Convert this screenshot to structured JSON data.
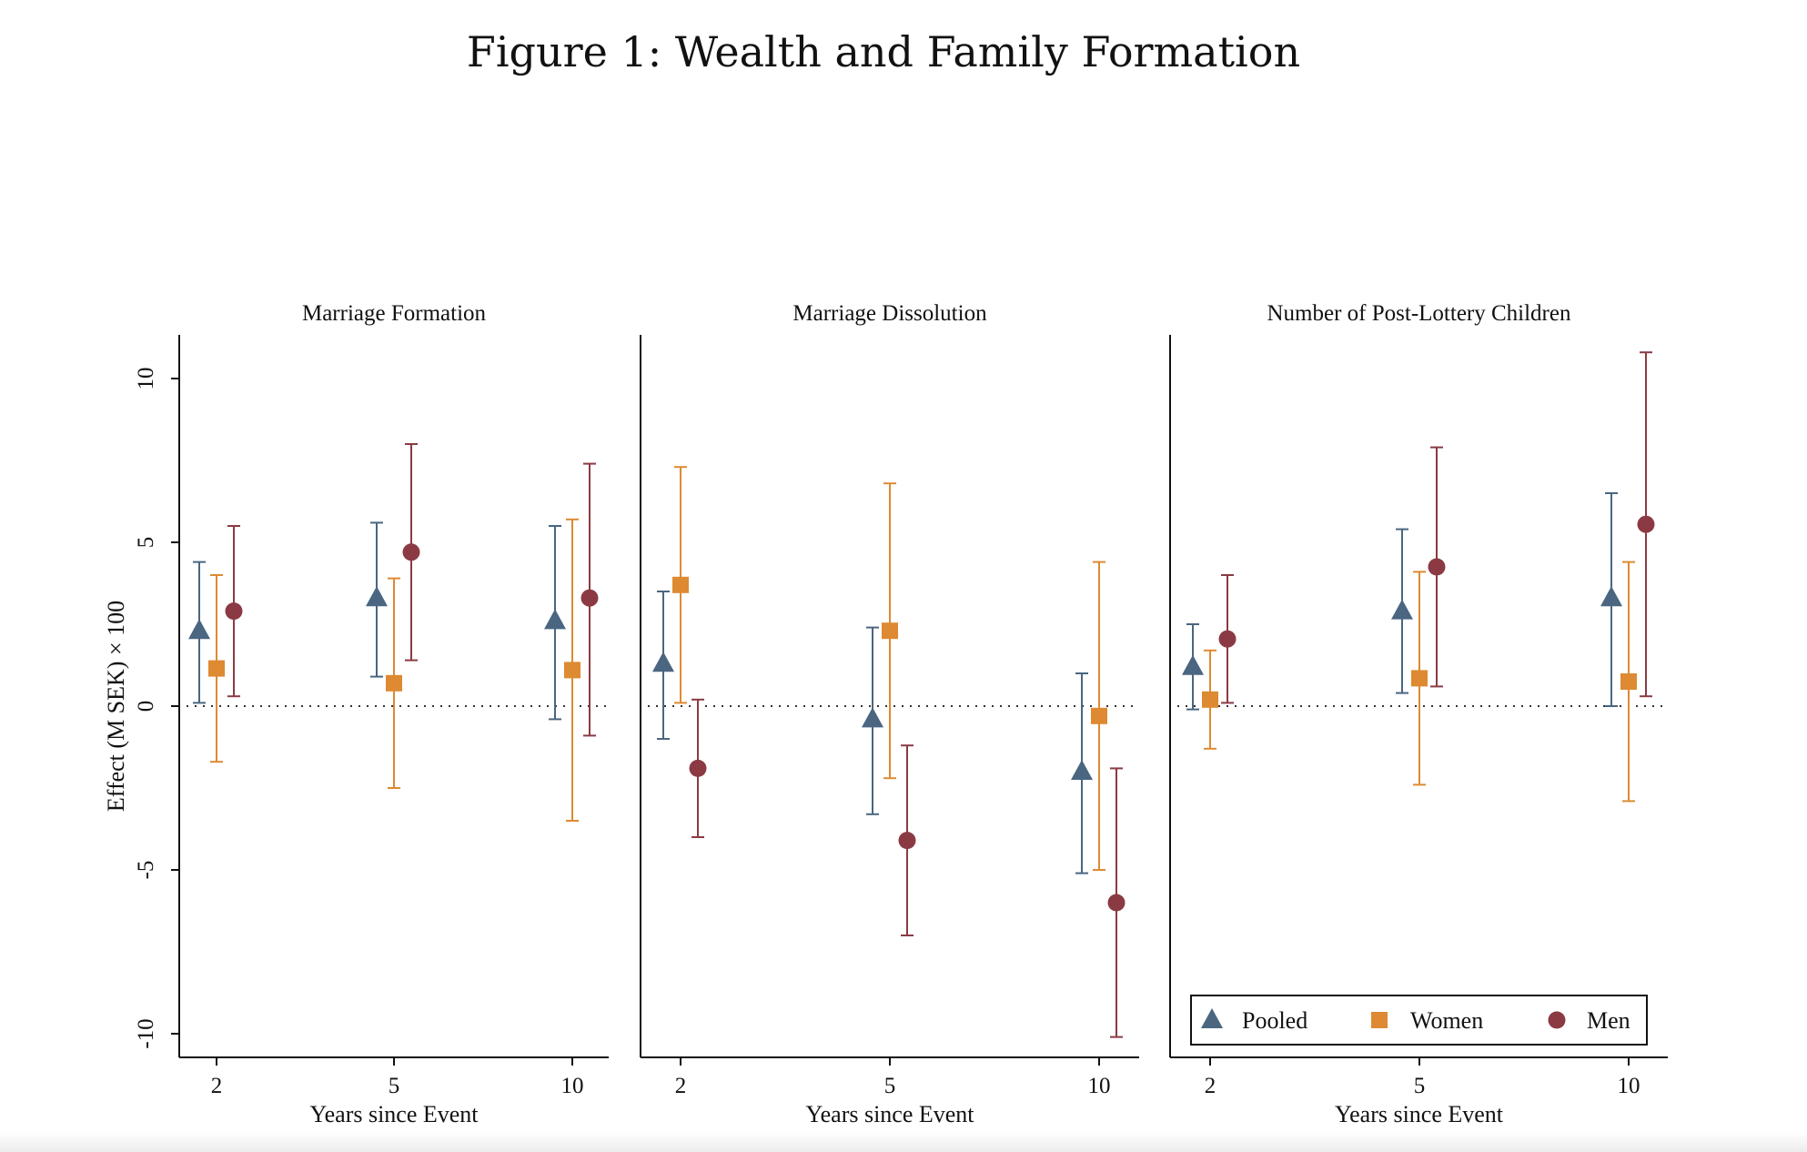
{
  "figure_title": "Figure 1: Wealth and Family Formation",
  "colors": {
    "pooled": "#4a6680",
    "women": "#dd8a32",
    "men": "#8b3a43",
    "axis": "#111111",
    "zero_line": "#333333"
  },
  "legend": {
    "placement": "bottom-right of third panel",
    "items": [
      {
        "label": "Pooled",
        "marker": "triangle",
        "color_key": "pooled"
      },
      {
        "label": "Women",
        "marker": "square",
        "color_key": "women"
      },
      {
        "label": "Men",
        "marker": "circle",
        "color_key": "men"
      }
    ]
  },
  "chart_data": [
    {
      "type": "scatter",
      "title": "Marriage Formation",
      "xlabel": "Years since Event",
      "ylabel": "Effect (M SEK) × 100",
      "categories": [
        "2",
        "5",
        "10"
      ],
      "ylim": [
        -10.5,
        11.3
      ],
      "yticks": [
        10,
        5,
        0,
        -5,
        -10
      ],
      "zero_line": "dotted",
      "series": [
        {
          "name": "Pooled",
          "points": [
            {
              "x": "2",
              "y": 2.3,
              "lo": 0.1,
              "hi": 4.4
            },
            {
              "x": "5",
              "y": 3.3,
              "lo": 0.9,
              "hi": 5.6
            },
            {
              "x": "10",
              "y": 2.6,
              "lo": -0.4,
              "hi": 5.5
            }
          ]
        },
        {
          "name": "Women",
          "points": [
            {
              "x": "2",
              "y": 1.15,
              "lo": -1.7,
              "hi": 4.0
            },
            {
              "x": "5",
              "y": 0.7,
              "lo": -2.5,
              "hi": 3.9
            },
            {
              "x": "10",
              "y": 1.1,
              "lo": -3.5,
              "hi": 5.7
            }
          ]
        },
        {
          "name": "Men",
          "points": [
            {
              "x": "2",
              "y": 2.9,
              "lo": 0.3,
              "hi": 5.5
            },
            {
              "x": "5",
              "y": 4.7,
              "lo": 1.4,
              "hi": 8.0
            },
            {
              "x": "10",
              "y": 3.3,
              "lo": -0.9,
              "hi": 7.4
            }
          ]
        }
      ]
    },
    {
      "type": "scatter",
      "title": "Marriage Dissolution",
      "xlabel": "Years since Event",
      "ylabel": "",
      "categories": [
        "2",
        "5",
        "10"
      ],
      "ylim": [
        -10.5,
        11.3
      ],
      "zero_line": "dotted",
      "series": [
        {
          "name": "Pooled",
          "points": [
            {
              "x": "2",
              "y": 1.3,
              "lo": -1.0,
              "hi": 3.5
            },
            {
              "x": "5",
              "y": -0.4,
              "lo": -3.3,
              "hi": 2.4
            },
            {
              "x": "10",
              "y": -2.0,
              "lo": -5.1,
              "hi": 1.0
            }
          ]
        },
        {
          "name": "Women",
          "points": [
            {
              "x": "2",
              "y": 3.7,
              "lo": 0.1,
              "hi": 7.3
            },
            {
              "x": "5",
              "y": 2.3,
              "lo": -2.2,
              "hi": 6.8
            },
            {
              "x": "10",
              "y": -0.3,
              "lo": -5.0,
              "hi": 4.4
            }
          ]
        },
        {
          "name": "Men",
          "points": [
            {
              "x": "2",
              "y": -1.9,
              "lo": -4.0,
              "hi": 0.2
            },
            {
              "x": "5",
              "y": -4.1,
              "lo": -7.0,
              "hi": -1.2
            },
            {
              "x": "10",
              "y": -6.0,
              "lo": -10.1,
              "hi": -1.9
            }
          ]
        }
      ]
    },
    {
      "type": "scatter",
      "title": "Number of Post-Lottery Children",
      "xlabel": "Years since Event",
      "ylabel": "",
      "categories": [
        "2",
        "5",
        "10"
      ],
      "ylim": [
        -10.5,
        11.3
      ],
      "zero_line": "dotted",
      "series": [
        {
          "name": "Pooled",
          "points": [
            {
              "x": "2",
              "y": 1.2,
              "lo": -0.1,
              "hi": 2.5
            },
            {
              "x": "5",
              "y": 2.9,
              "lo": 0.4,
              "hi": 5.4
            },
            {
              "x": "10",
              "y": 3.3,
              "lo": 0.0,
              "hi": 6.5
            }
          ]
        },
        {
          "name": "Women",
          "points": [
            {
              "x": "2",
              "y": 0.2,
              "lo": -1.3,
              "hi": 1.7
            },
            {
              "x": "5",
              "y": 0.85,
              "lo": -2.4,
              "hi": 4.1
            },
            {
              "x": "10",
              "y": 0.75,
              "lo": -2.9,
              "hi": 4.4
            }
          ]
        },
        {
          "name": "Men",
          "points": [
            {
              "x": "2",
              "y": 2.05,
              "lo": 0.1,
              "hi": 4.0
            },
            {
              "x": "5",
              "y": 4.25,
              "lo": 0.6,
              "hi": 7.9
            },
            {
              "x": "10",
              "y": 5.55,
              "lo": 0.3,
              "hi": 10.8
            }
          ]
        }
      ]
    }
  ]
}
